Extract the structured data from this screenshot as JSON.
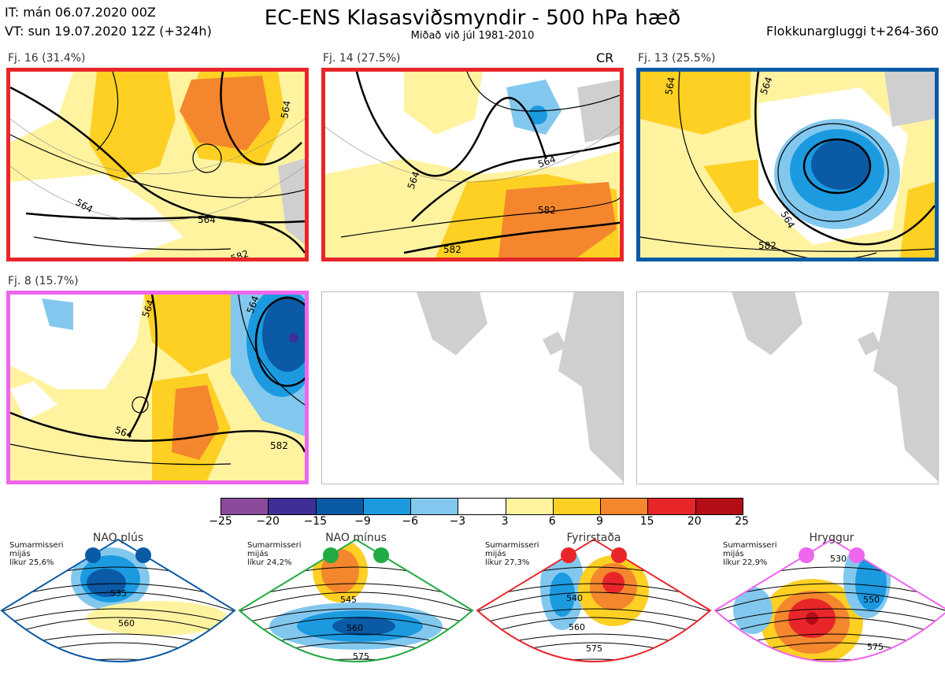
{
  "header": {
    "it_line": "IT: mán 06.07.2020 00Z",
    "vt_line": "VT: sun 19.07.2020 12Z  (+324h)",
    "title": "EC-ENS Klasasviðsmyndir - 500 hPa hæð",
    "subtitle": "Miðað við júl 1981-2010",
    "window": "Flokkunargluggi t+264-360"
  },
  "panels": [
    {
      "label": "Fj. 16 (31.4%)",
      "border_color": "#e8262a",
      "contours": [
        "564",
        "564",
        "564",
        "582"
      ]
    },
    {
      "label": "Fj. 14 (27.5%)",
      "border_color": "#e8262a",
      "tag": "CR",
      "contours": [
        "564",
        "564",
        "582",
        "582"
      ]
    },
    {
      "label": "Fj. 13 (25.5%)",
      "border_color": "#0b5aa5",
      "contours": [
        "564",
        "564",
        "564",
        "582"
      ]
    },
    {
      "label": "Fj. 8 (15.7%)",
      "border_color": "#ee66ee",
      "contours": [
        "564",
        "564",
        "564",
        "582"
      ]
    }
  ],
  "colorbar": {
    "ticks": [
      "−25",
      "−20",
      "−15",
      "−9",
      "−6",
      "−3",
      "3",
      "6",
      "9",
      "15",
      "20",
      "25"
    ],
    "colors": [
      "#8b4a9c",
      "#3d2f96",
      "#0b5aa5",
      "#1b9ae0",
      "#82c8ee",
      "#ffffff",
      "#fff3a0",
      "#fdd023",
      "#f4862e",
      "#e8262a",
      "#b40d15"
    ]
  },
  "regimes": [
    {
      "name": "NAO plús",
      "season": "Sumarmisseri",
      "avg": "mijás",
      "likelihood": "líkur 25,6%",
      "color": "#0b5aa5",
      "contours": [
        "535",
        "560"
      ]
    },
    {
      "name": "NAO mínus",
      "season": "Sumarmisseri",
      "avg": "mijás",
      "likelihood": "líkur 24,2%",
      "color": "#22aa44",
      "contours": [
        "545",
        "560",
        "575"
      ]
    },
    {
      "name": "Fyrirstaða",
      "season": "Sumarmisseri",
      "avg": "mijás",
      "likelihood": "líkur 27,3%",
      "color": "#e8262a",
      "contours": [
        "540",
        "560",
        "575"
      ]
    },
    {
      "name": "Hryggur",
      "season": "Sumarmisseri",
      "avg": "mijás",
      "likelihood": "líkur 22,9%",
      "color": "#ee66ee",
      "contours": [
        "530",
        "550",
        "575"
      ]
    }
  ]
}
